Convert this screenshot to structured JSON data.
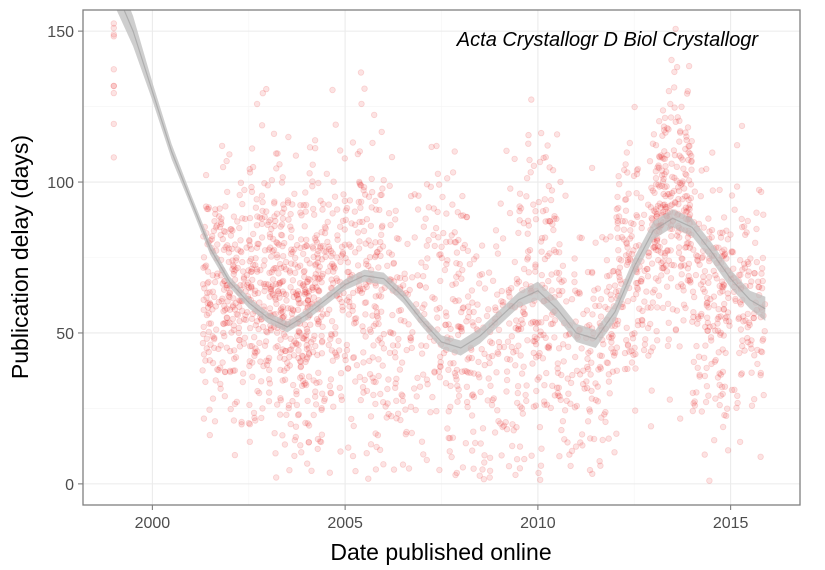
{
  "chart_data": {
    "type": "scatter",
    "title": "",
    "annotation": "Acta Crystallogr D Biol Crystallogr",
    "xlabel": "Date published online",
    "ylabel": "Publication delay (days)",
    "xlim": [
      1998.2,
      2016.8
    ],
    "ylim": [
      -7,
      157
    ],
    "x_ticks": [
      2000,
      2005,
      2010,
      2015
    ],
    "x_tick_labels": [
      "2000",
      "2005",
      "2010",
      "2015"
    ],
    "y_ticks": [
      0,
      50,
      100,
      150
    ],
    "y_tick_labels": [
      "0",
      "50",
      "100",
      "150"
    ],
    "grid": true,
    "point_color": "#e41a1c",
    "point_alpha": 0.12,
    "smooth_color": "#999999",
    "smooth_band_color": "#bdbdbd",
    "smooth_curve": {
      "x": [
        1999.0,
        1999.5,
        2000.0,
        2000.5,
        2001.0,
        2001.5,
        2002.0,
        2002.5,
        2003.0,
        2003.5,
        2004.0,
        2004.5,
        2005.0,
        2005.5,
        2006.0,
        2006.5,
        2007.0,
        2007.5,
        2008.0,
        2008.5,
        2009.0,
        2009.5,
        2010.0,
        2010.5,
        2011.0,
        2011.5,
        2012.0,
        2012.5,
        2013.0,
        2013.5,
        2014.0,
        2014.5,
        2015.0,
        2015.5,
        2015.9
      ],
      "y": [
        165,
        150,
        130,
        110,
        94,
        78,
        67,
        60,
        55,
        52,
        56,
        61,
        66,
        69,
        68,
        62,
        54,
        47,
        45,
        49,
        55,
        61,
        64,
        58,
        50,
        48,
        57,
        72,
        84,
        88,
        85,
        77,
        68,
        61,
        58
      ],
      "band_halfwidth": [
        6,
        5,
        3,
        2.5,
        2,
        2,
        1.8,
        1.8,
        1.8,
        1.8,
        1.8,
        1.8,
        1.8,
        2,
        2,
        2,
        2,
        2.2,
        2.5,
        2.5,
        2.5,
        2.5,
        3,
        3,
        3,
        3,
        3,
        3,
        3,
        3,
        3,
        3,
        3,
        3,
        4
      ]
    },
    "point_clusters": [
      {
        "x": [
          1999.0,
          1999.0
        ],
        "y_mean": 140,
        "y_sd": 20,
        "count": 10
      },
      {
        "x": [
          2001.3,
          2002.5
        ],
        "y_mean": 62,
        "y_sd": 20,
        "count": 240
      },
      {
        "x": [
          2002.5,
          2004.5
        ],
        "y_mean": 60,
        "y_sd": 22,
        "count": 520
      },
      {
        "x": [
          2004.5,
          2006.0
        ],
        "y_mean": 65,
        "y_sd": 28,
        "count": 260
      },
      {
        "x": [
          2006.0,
          2008.0
        ],
        "y_mean": 55,
        "y_sd": 25,
        "count": 230
      },
      {
        "x": [
          2008.0,
          2009.5
        ],
        "y_mean": 48,
        "y_sd": 25,
        "count": 170
      },
      {
        "x": [
          2009.5,
          2010.5
        ],
        "y_mean": 60,
        "y_sd": 28,
        "count": 160
      },
      {
        "x": [
          2010.5,
          2012.0
        ],
        "y_mean": 45,
        "y_sd": 22,
        "count": 170
      },
      {
        "x": [
          2012.0,
          2013.0
        ],
        "y_mean": 70,
        "y_sd": 22,
        "count": 160
      },
      {
        "x": [
          2013.0,
          2014.0
        ],
        "y_mean": 88,
        "y_sd": 20,
        "count": 260
      },
      {
        "x": [
          2014.0,
          2015.9
        ],
        "y_mean": 62,
        "y_sd": 20,
        "count": 280
      }
    ]
  }
}
